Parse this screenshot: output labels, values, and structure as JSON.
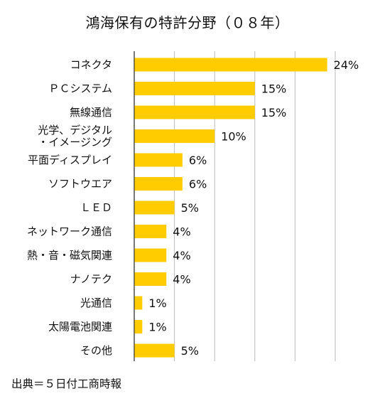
{
  "chart_data": {
    "type": "bar",
    "orientation": "horizontal",
    "title": "鴻海保有の特許分野（０８年）",
    "source": "出典＝５日付工商時報",
    "categories": [
      "コネクタ",
      "ＰＣシステム",
      "無線通信",
      "光学、デジタル\n・イメージング",
      "平面ディスプレイ",
      "ソフトウエア",
      "ＬＥＤ",
      "ネットワーク通信",
      "熱・音・磁気関連",
      "ナノテク",
      "光通信",
      "太陽電池関連",
      "その他"
    ],
    "values": [
      24,
      15,
      15,
      10,
      6,
      6,
      5,
      4,
      4,
      4,
      1,
      1,
      5
    ],
    "value_labels": [
      "24%",
      "15%",
      "15%",
      "10%",
      "6%",
      "6%",
      "5%",
      "4%",
      "4%",
      "4%",
      "1%",
      "1%",
      "5%"
    ],
    "xlim": [
      0,
      25
    ],
    "x_gridlines": [
      0,
      5,
      10,
      15,
      20,
      25
    ],
    "grid": true,
    "legend": "none",
    "bar_color": "#FFCC00",
    "grid_color": "#BBBBBB"
  }
}
